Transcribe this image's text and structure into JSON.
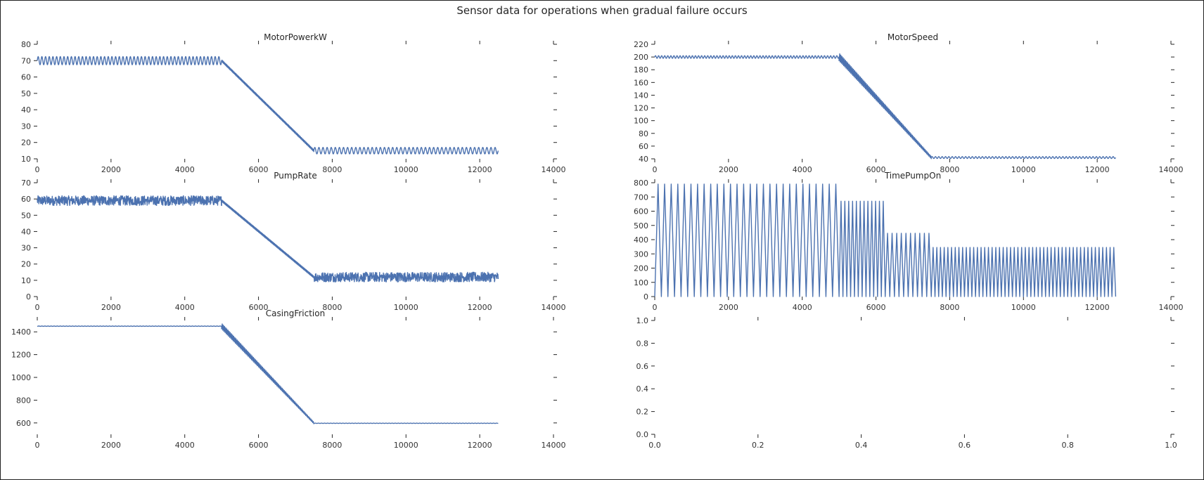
{
  "figure": {
    "suptitle": "Sensor data for operations when gradual failure occurs",
    "line_color": "#4c72b0",
    "axis_color": "#262626"
  },
  "chart_data": [
    {
      "type": "line",
      "title": "MotorPowerkW",
      "xlim": [
        0,
        14000
      ],
      "ylim": [
        10,
        80
      ],
      "xticks": [
        0,
        2000,
        4000,
        6000,
        8000,
        10000,
        12000,
        14000
      ],
      "yticks": [
        10,
        20,
        30,
        40,
        50,
        60,
        70,
        80
      ],
      "segments": [
        {
          "kind": "oscillate",
          "x": [
            0,
            5000
          ],
          "center": 70,
          "amplitude": 2.5,
          "cycles": 50
        },
        {
          "kind": "ramp",
          "x": [
            5000,
            7500
          ],
          "y": [
            70,
            15
          ]
        },
        {
          "kind": "oscillate",
          "x": [
            7500,
            12500
          ],
          "center": 15,
          "amplitude": 2,
          "cycles": 45
        }
      ]
    },
    {
      "type": "line",
      "title": "MotorSpeed",
      "xlim": [
        0,
        14000
      ],
      "ylim": [
        40,
        220
      ],
      "xticks": [
        0,
        2000,
        4000,
        6000,
        8000,
        10000,
        12000,
        14000
      ],
      "yticks": [
        40,
        60,
        80,
        100,
        120,
        140,
        160,
        180,
        200,
        220
      ],
      "segments": [
        {
          "kind": "oscillate",
          "x": [
            0,
            5000
          ],
          "center": 200,
          "amplitude": 2,
          "cycles": 60
        },
        {
          "kind": "band",
          "x": [
            5000,
            7500
          ],
          "y": [
            200,
            42
          ],
          "spread": 6
        },
        {
          "kind": "oscillate",
          "x": [
            7500,
            12500
          ],
          "center": 42,
          "amplitude": 1.5,
          "cycles": 55
        }
      ]
    },
    {
      "type": "line",
      "title": "PumpRate",
      "xlim": [
        0,
        14000
      ],
      "ylim": [
        0,
        70
      ],
      "xticks": [
        0,
        2000,
        4000,
        6000,
        8000,
        10000,
        12000,
        14000
      ],
      "yticks": [
        0,
        10,
        20,
        30,
        40,
        50,
        60,
        70
      ],
      "segments": [
        {
          "kind": "noise",
          "x": [
            0,
            5000
          ],
          "center": 59,
          "amplitude": 3
        },
        {
          "kind": "ramp",
          "x": [
            5000,
            7500
          ],
          "y": [
            59,
            12
          ]
        },
        {
          "kind": "noise",
          "x": [
            7500,
            12500
          ],
          "center": 12,
          "amplitude": 3
        }
      ]
    },
    {
      "type": "line",
      "title": "TimePumpOn",
      "xlim": [
        0,
        14000
      ],
      "ylim": [
        0,
        800
      ],
      "xticks": [
        0,
        2000,
        4000,
        6000,
        8000,
        10000,
        12000,
        14000
      ],
      "yticks": [
        0,
        100,
        200,
        300,
        400,
        500,
        600,
        700,
        800
      ],
      "segments": [
        {
          "kind": "sawtooth",
          "x": [
            0,
            5000
          ],
          "peak": 790,
          "teeth": 28
        },
        {
          "kind": "sawtooth",
          "x": [
            5000,
            6250
          ],
          "peak": 670,
          "teeth": 12
        },
        {
          "kind": "sawtooth",
          "x": [
            6250,
            7500
          ],
          "peak": 445,
          "teeth": 10
        },
        {
          "kind": "sawtooth",
          "x": [
            7500,
            12500
          ],
          "peak": 345,
          "teeth": 50
        }
      ]
    },
    {
      "type": "line",
      "title": "CasingFriction",
      "xlim": [
        0,
        14000
      ],
      "ylim": [
        500,
        1500
      ],
      "xticks": [
        0,
        2000,
        4000,
        6000,
        8000,
        10000,
        12000,
        14000
      ],
      "yticks": [
        600,
        800,
        1000,
        1200,
        1400
      ],
      "segments": [
        {
          "kind": "flat",
          "x": [
            0,
            5000
          ],
          "y": 1450
        },
        {
          "kind": "band",
          "x": [
            5000,
            7500
          ],
          "y": [
            1450,
            600
          ],
          "spread": 25
        },
        {
          "kind": "flat",
          "x": [
            7500,
            12500
          ],
          "y": 597
        }
      ]
    },
    {
      "type": "line",
      "title": "",
      "xlim": [
        0,
        1
      ],
      "ylim": [
        0,
        1
      ],
      "xticks": [
        0.0,
        0.2,
        0.4,
        0.6,
        0.8,
        1.0
      ],
      "yticks": [
        0.0,
        0.2,
        0.4,
        0.6,
        0.8,
        1.0
      ],
      "segments": []
    }
  ]
}
